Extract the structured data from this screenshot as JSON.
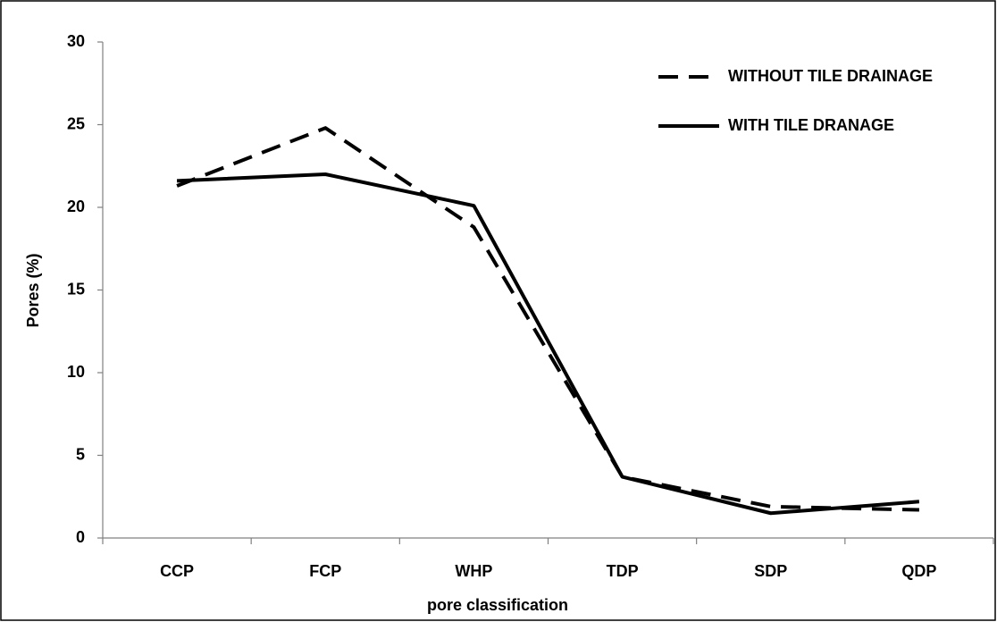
{
  "chart_data": {
    "type": "line",
    "x_label": "pore classification",
    "y_label": "Pores (%)",
    "categories": [
      "CCP",
      "FCP",
      "WHP",
      "TDP",
      "SDP",
      "QDP"
    ],
    "series": [
      {
        "name": "WITHOUT TILE DRAINAGE",
        "color": "#000000",
        "dash": "dashed",
        "values": [
          21.3,
          24.8,
          18.8,
          3.7,
          1.9,
          1.7
        ]
      },
      {
        "name": "WITH TILE DRANAGE",
        "color": "#000000",
        "dash": "solid",
        "values": [
          21.6,
          22.0,
          20.1,
          3.7,
          1.5,
          2.2
        ]
      }
    ],
    "ylim": [
      0,
      30
    ],
    "yticks": [
      0,
      5,
      10,
      15,
      20,
      25,
      30
    ],
    "grid": false,
    "legend": "upper right"
  }
}
